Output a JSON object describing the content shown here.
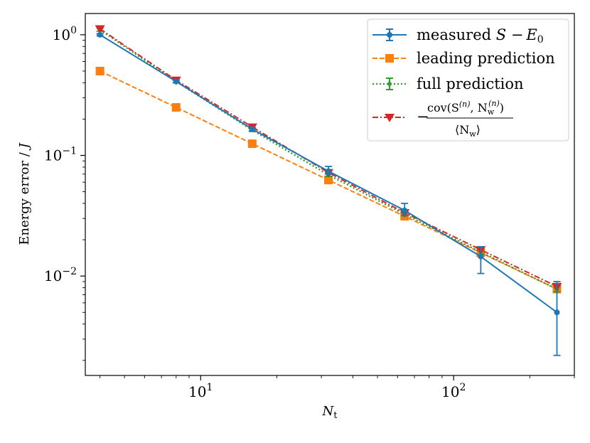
{
  "chart_data": {
    "type": "line",
    "xscale": "log",
    "yscale": "log",
    "xlabel": "N_t",
    "ylabel": "Energy error / J",
    "xlim": [
      3.5,
      300
    ],
    "ylim": [
      0.0015,
      1.5
    ],
    "x_ticks": [
      {
        "base": "10",
        "exp": "1",
        "value": 10
      },
      {
        "base": "10",
        "exp": "2",
        "value": 100
      }
    ],
    "y_ticks": [
      {
        "base": "10",
        "exp": "0",
        "value": 1
      },
      {
        "base": "10",
        "exp": "−1",
        "value": 0.1
      },
      {
        "base": "10",
        "exp": "−2",
        "value": 0.01
      }
    ],
    "legend_position": "top-right",
    "series": [
      {
        "name": "measured S − E0",
        "color": "#1f77b4",
        "linestyle": "solid",
        "marker": "circle",
        "x": [
          4,
          8,
          16,
          32,
          64,
          128,
          256
        ],
        "y": [
          1.0,
          0.41,
          0.165,
          0.074,
          0.035,
          0.0145,
          0.005
        ],
        "err_low": [
          0.02,
          0.01,
          0.005,
          0.004,
          0.003,
          0.004,
          0.0028
        ],
        "err_high": [
          0.02,
          0.01,
          0.005,
          0.007,
          0.005,
          0.003,
          0.004
        ]
      },
      {
        "name": "leading prediction",
        "color": "#ff7f0e",
        "linestyle": "dashed",
        "marker": "square",
        "x": [
          4,
          8,
          16,
          32,
          64,
          128,
          256
        ],
        "y": [
          0.5,
          0.25,
          0.125,
          0.0625,
          0.0313,
          0.0156,
          0.0078
        ]
      },
      {
        "name": "full prediction",
        "color": "#2ca02c",
        "linestyle": "dotted",
        "marker": "small-circle",
        "x": [
          4,
          8,
          16,
          32,
          64,
          128,
          256
        ],
        "y": [
          1.1,
          0.41,
          0.162,
          0.069,
          0.0325,
          0.0158,
          0.0078
        ],
        "err_low": [
          0.03,
          0.01,
          0.004,
          0.002,
          0.001,
          0.0008,
          0.0004
        ],
        "err_high": [
          0.03,
          0.01,
          0.004,
          0.002,
          0.001,
          0.0008,
          0.0004
        ]
      },
      {
        "name": "−cov(S(n), Nw(n)) / ⟨Nw⟩",
        "color": "#d62728",
        "linestyle": "dashdot",
        "marker": "triangle-down",
        "x": [
          4,
          8,
          16,
          32,
          64,
          128,
          256
        ],
        "y": [
          1.12,
          0.42,
          0.172,
          0.072,
          0.0335,
          0.0165,
          0.0082
        ]
      }
    ],
    "legend": {
      "measured_main": "measured ",
      "measured_S": "S",
      "measured_minus": " −",
      "measured_E": "E",
      "measured_E_sub": "0",
      "leading": "leading prediction",
      "full": "full prediction",
      "cov_minus": "−",
      "cov_numerator": "cov(S",
      "cov_n1": "(n)",
      "cov_mid": ", N",
      "cov_w1": "w",
      "cov_n2": "(n)",
      "cov_close": ")",
      "cov_den_open": "⟨N",
      "cov_den_w": "w",
      "cov_den_close": "⟩"
    },
    "xlabel_parts": {
      "main": "N",
      "sub": "t"
    },
    "ylabel_parts": {
      "main": "Energy error / ",
      "italic": "J"
    }
  }
}
